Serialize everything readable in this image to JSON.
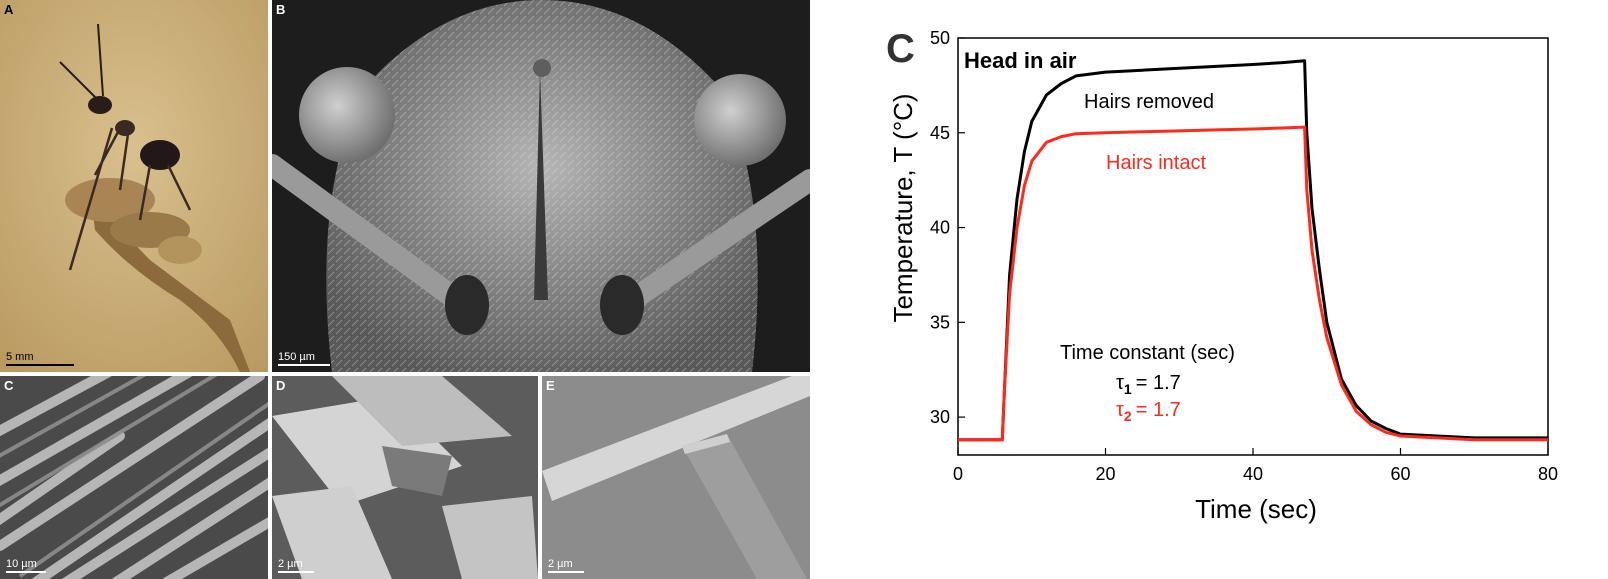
{
  "panels": {
    "a": {
      "letter": "A",
      "scale": "5 mm"
    },
    "b": {
      "letter": "B",
      "scale": "150 µm"
    },
    "c": {
      "letter": "C",
      "scale": "10 µm"
    },
    "d": {
      "letter": "D",
      "scale": "2 µm"
    },
    "e": {
      "letter": "E",
      "scale": "2 µm"
    }
  },
  "chart_data": {
    "type": "line",
    "panel_letter": "C",
    "title": "Head in air",
    "xlabel": "Time (sec)",
    "ylabel": "Temperature, T (°C)",
    "xlim": [
      0,
      80
    ],
    "ylim": [
      28,
      50
    ],
    "xticks": [
      0,
      20,
      40,
      60,
      80
    ],
    "yticks": [
      30,
      35,
      40,
      45,
      50
    ],
    "grid": false,
    "series": [
      {
        "name": "Hairs removed",
        "color": "#000000",
        "x": [
          0,
          6,
          6.3,
          7,
          8,
          9,
          10,
          12,
          14,
          16,
          20,
          25,
          30,
          35,
          40,
          44,
          47,
          47.3,
          48,
          49,
          50,
          52,
          54,
          56,
          58,
          60,
          65,
          70,
          75,
          80
        ],
        "y": [
          28.8,
          28.8,
          31.5,
          37.5,
          41.5,
          44.0,
          45.6,
          47.0,
          47.6,
          48.0,
          48.2,
          48.3,
          48.4,
          48.5,
          48.6,
          48.7,
          48.8,
          45.0,
          41.0,
          37.8,
          35.0,
          32.0,
          30.6,
          29.8,
          29.4,
          29.1,
          29.0,
          28.9,
          28.9,
          28.9
        ]
      },
      {
        "name": "Hairs intact",
        "color": "#ff2a1a",
        "x": [
          0,
          6,
          6.3,
          7,
          8,
          9,
          10,
          12,
          14,
          16,
          20,
          25,
          30,
          35,
          40,
          44,
          47,
          47.3,
          48,
          49,
          50,
          52,
          54,
          56,
          58,
          60,
          65,
          70,
          75,
          80
        ],
        "y": [
          28.8,
          28.8,
          31.5,
          36.5,
          40.0,
          42.2,
          43.5,
          44.5,
          44.8,
          44.95,
          45.0,
          45.05,
          45.1,
          45.15,
          45.2,
          45.25,
          45.3,
          42.0,
          38.8,
          36.2,
          34.2,
          31.7,
          30.3,
          29.6,
          29.2,
          29.0,
          28.9,
          28.8,
          28.8,
          28.8
        ]
      }
    ],
    "annotations": {
      "series_label_removed": "Hairs removed",
      "series_label_intact": "Hairs intact",
      "time_constant_title": "Time constant (sec)",
      "tau1_symbol": "τ",
      "tau1_sub": "1",
      "tau1_value": "= 1.7",
      "tau2_symbol": "τ",
      "tau2_sub": "2",
      "tau2_value": "= 1.7"
    }
  }
}
